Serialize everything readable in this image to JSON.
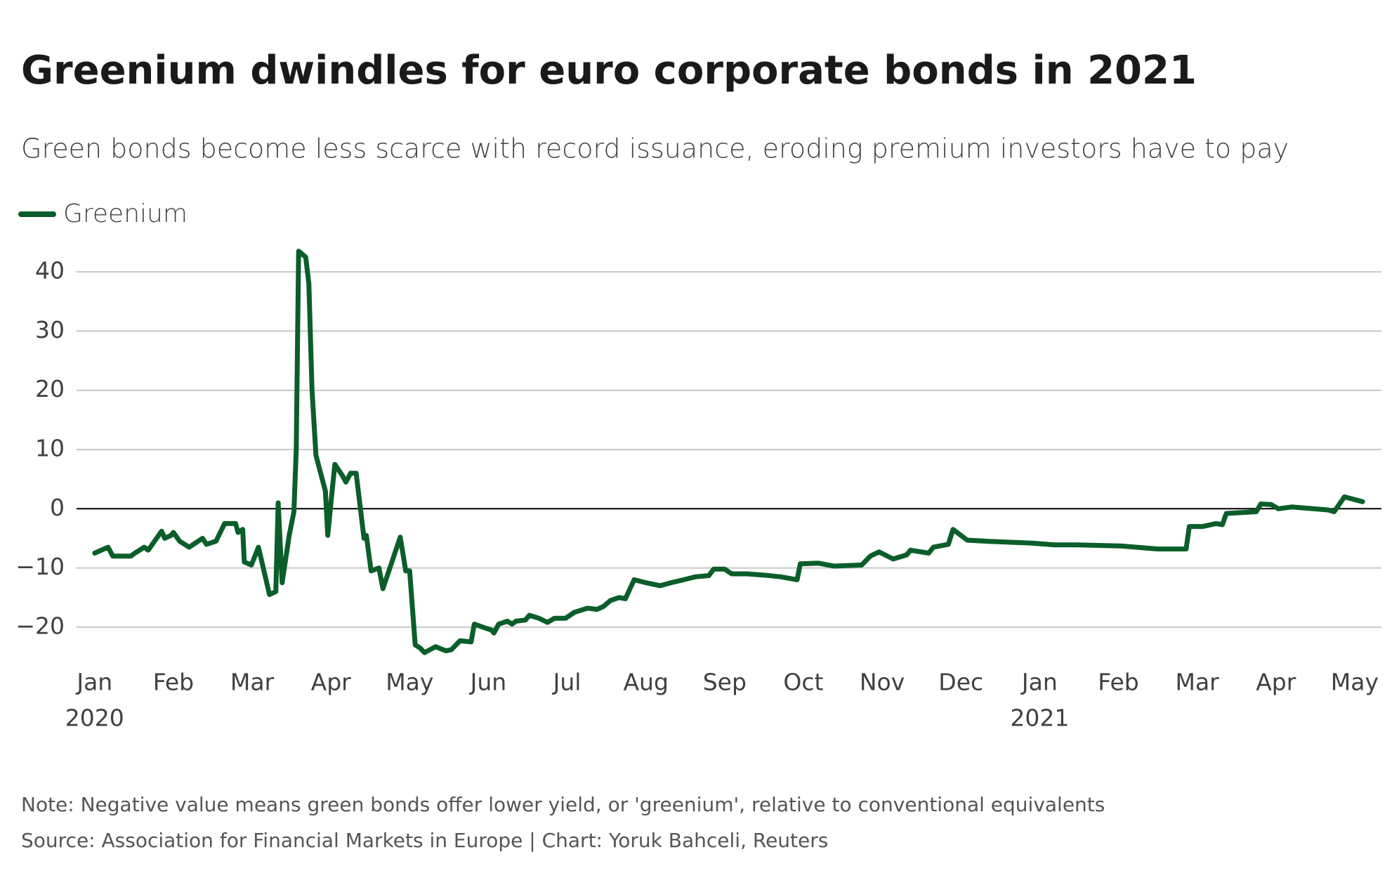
{
  "chart_data": {
    "type": "line",
    "title": "Greenium dwindles for euro corporate bonds in 2021",
    "subtitle": "Green bonds become less scarce with record issuance, eroding premium investors have to pay",
    "note": "Note: Negative value means green bonds offer lower yield, or 'greenium', relative to conventional equivalents",
    "source": "Source: Association for Financial Markets in Europe | Chart: Yoruk Bahceli, Reuters",
    "x": [
      0,
      0.17,
      0.23,
      0.46,
      0.51,
      0.63,
      0.68,
      0.85,
      0.89,
      0.97,
      1.0,
      1.08,
      1.2,
      1.37,
      1.42,
      1.54,
      1.65,
      1.79,
      1.82,
      1.88,
      1.9,
      1.99,
      2.08,
      2.22,
      2.3,
      2.33,
      2.38,
      2.47,
      2.53,
      2.56,
      2.59,
      2.68,
      2.72,
      2.76,
      2.81,
      2.93,
      2.96,
      3.0,
      3.05,
      3.15,
      3.19,
      3.25,
      3.32,
      3.42,
      3.45,
      3.51,
      3.61,
      3.66,
      3.88,
      3.95,
      4.0,
      4.07,
      4.13,
      4.19,
      4.33,
      4.46,
      4.53,
      4.64,
      4.78,
      4.82,
      4.93,
      5.04,
      5.07,
      5.13,
      5.24,
      5.3,
      5.35,
      5.47,
      5.52,
      5.64,
      5.75,
      5.84,
      5.98,
      6.09,
      6.26,
      6.38,
      6.46,
      6.55,
      6.66,
      6.74,
      6.85,
      7.0,
      7.18,
      7.32,
      7.48,
      7.63,
      7.8,
      7.86,
      8.0,
      8.09,
      8.28,
      8.49,
      8.71,
      8.92,
      8.96,
      9.19,
      9.39,
      9.74,
      9.85,
      9.96,
      10.14,
      10.31,
      10.36,
      10.59,
      10.65,
      10.84,
      10.9,
      11.08,
      11.33,
      11.9,
      12.19,
      12.47,
      13.04,
      13.5,
      13.86,
      13.9,
      14.07,
      14.24,
      14.32,
      14.37,
      14.75,
      14.81,
      14.94,
      15.03,
      15.2,
      15.66,
      15.74,
      15.87,
      16.1
    ],
    "series": [
      {
        "name": "Greenium",
        "color": "#0b5e2a",
        "values": [
          -7.5,
          -6.5,
          -8,
          -8,
          -7.5,
          -6.5,
          -7,
          -3.8,
          -5,
          -4.5,
          -4,
          -5.5,
          -6.5,
          -5,
          -6,
          -5.5,
          -2.5,
          -2.5,
          -4,
          -3.5,
          -9,
          -9.5,
          -6.5,
          -14.5,
          -14,
          1,
          -12.5,
          -4.5,
          -0.5,
          10,
          43.5,
          42.5,
          38,
          20,
          9,
          3,
          -4.5,
          1,
          7.5,
          5.5,
          4.5,
          6,
          6,
          -5,
          -4.5,
          -10.5,
          -10,
          -13.5,
          -4.8,
          -10.5,
          -10.5,
          -23,
          -23.5,
          -24.3,
          -23.3,
          -24,
          -23.8,
          -22.3,
          -22.5,
          -19.5,
          -20,
          -20.5,
          -21,
          -19.5,
          -19,
          -19.5,
          -19,
          -18.8,
          -18,
          -18.5,
          -19.2,
          -18.5,
          -18.5,
          -17.5,
          -16.8,
          -17,
          -16.5,
          -15.5,
          -15,
          -15.2,
          -12,
          -12.5,
          -13,
          -12.5,
          -12,
          -11.5,
          -11.3,
          -10.2,
          -10.2,
          -11,
          -11,
          -11.2,
          -11.5,
          -12,
          -9.3,
          -9.2,
          -9.7,
          -9.5,
          -8,
          -7.3,
          -8.5,
          -7.8,
          -7,
          -7.5,
          -6.5,
          -6,
          -3.5,
          -5.3,
          -5.5,
          -5.8,
          -6.1,
          -6.1,
          -6.3,
          -6.8,
          -6.8,
          -3,
          -3,
          -2.5,
          -2.7,
          -0.8,
          -0.5,
          0.8,
          0.7,
          0,
          0.3,
          -0.2,
          -0.5,
          2,
          1.2
        ]
      }
    ],
    "xlim": [
      -0.23,
      16.34
    ],
    "xticks": [
      {
        "value": 0,
        "label": "Jan"
      },
      {
        "value": 1,
        "label": "Feb"
      },
      {
        "value": 2,
        "label": "Mar"
      },
      {
        "value": 3,
        "label": "Apr"
      },
      {
        "value": 4,
        "label": "May"
      },
      {
        "value": 5,
        "label": "Jun"
      },
      {
        "value": 6,
        "label": "Jul"
      },
      {
        "value": 7,
        "label": "Aug"
      },
      {
        "value": 8,
        "label": "Sep"
      },
      {
        "value": 9,
        "label": "Oct"
      },
      {
        "value": 10,
        "label": "Nov"
      },
      {
        "value": 11,
        "label": "Dec"
      },
      {
        "value": 12,
        "label": "Jan"
      },
      {
        "value": 13,
        "label": "Feb"
      },
      {
        "value": 14,
        "label": "Mar"
      },
      {
        "value": 15,
        "label": "Apr"
      },
      {
        "value": 16,
        "label": "May"
      }
    ],
    "xtick_years": [
      {
        "value": 0,
        "label": "2020"
      },
      {
        "value": 12,
        "label": "2021"
      }
    ],
    "ylim": [
      -25,
      45
    ],
    "yticks": [
      {
        "value": -20,
        "label": "−20"
      },
      {
        "value": -10,
        "label": "−10"
      },
      0,
      10,
      20,
      30,
      40
    ],
    "grid": true
  }
}
